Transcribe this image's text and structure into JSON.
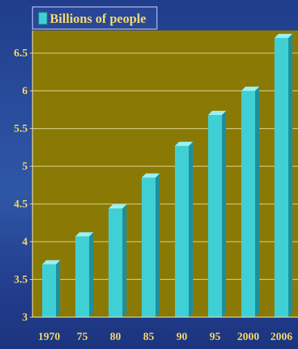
{
  "chart_data": {
    "type": "bar",
    "categories": [
      "1970",
      "75",
      "80",
      "85",
      "90",
      "95",
      "2000",
      "2006"
    ],
    "series": [
      {
        "name": "Billions of people",
        "values": [
          3.7,
          4.07,
          4.44,
          4.85,
          5.27,
          5.68,
          6.0,
          6.7
        ]
      }
    ],
    "y_ticks": [
      "3",
      "3.5",
      "4",
      "4.5",
      "5",
      "5.5",
      "6",
      "6.5"
    ],
    "ylim": [
      3,
      6.8
    ],
    "grid": true,
    "legend_position": "top-left",
    "colors": {
      "plot_area": "#8a7a05",
      "bar_front": "#3fd0d6",
      "bar_side": "#1f8f9a",
      "bar_top": "#9af1f3",
      "grid": "#d8cf8a",
      "labels": "#f2d46a"
    }
  }
}
